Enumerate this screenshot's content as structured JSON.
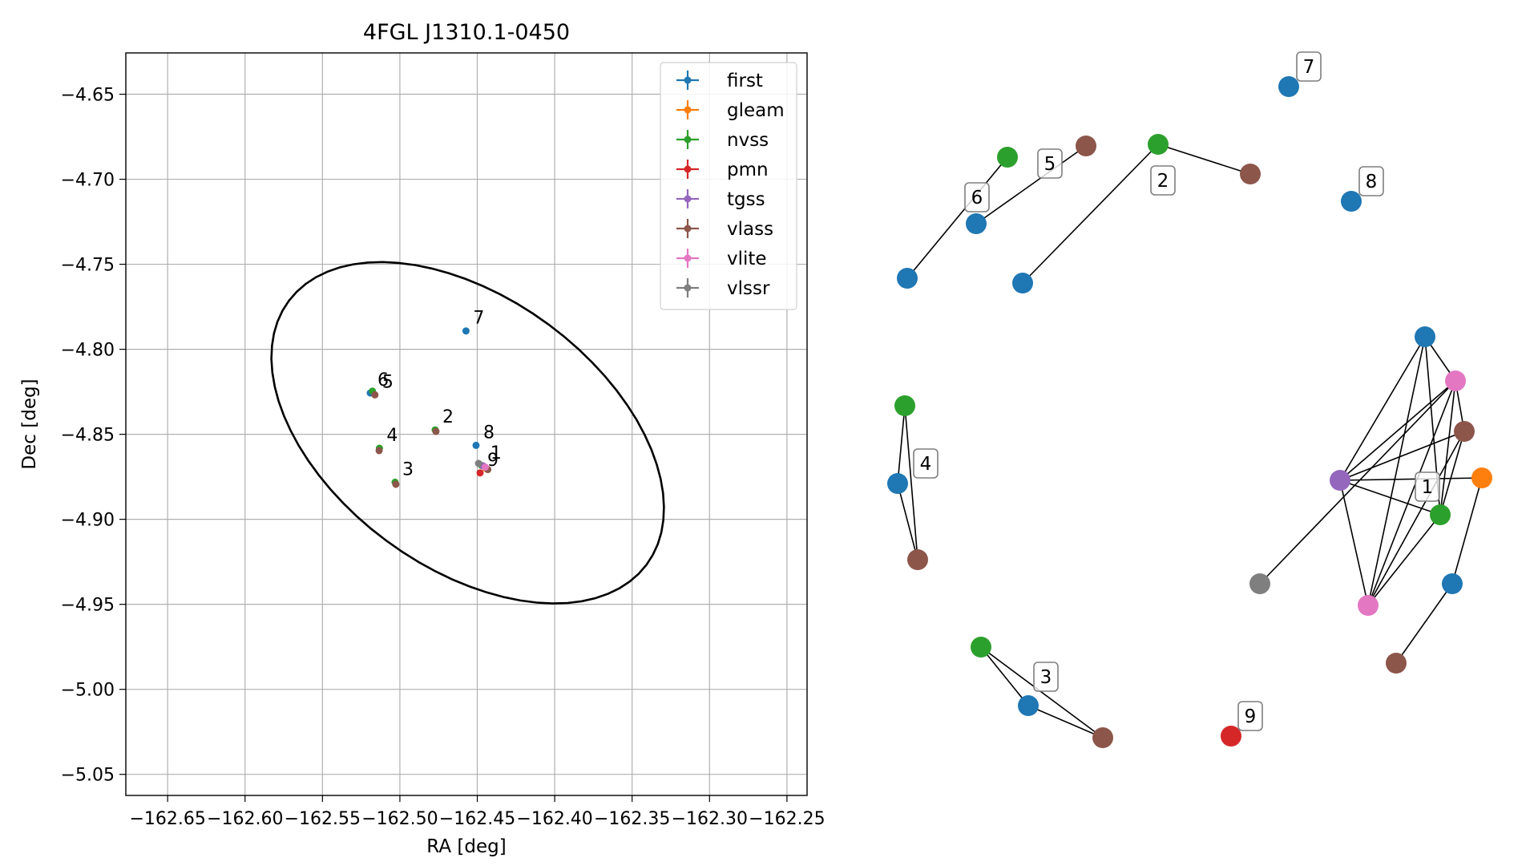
{
  "chart_data": [
    {
      "type": "scatter",
      "title": "4FGL J1310.1-0450",
      "xlabel": "RA [deg]",
      "ylabel": "Dec [deg]",
      "xlim": [
        -162.677,
        -162.237
      ],
      "ylim": [
        -5.0624,
        -4.6257
      ],
      "xticks": [
        -162.65,
        -162.6,
        -162.55,
        -162.5,
        -162.45,
        -162.4,
        -162.35,
        -162.3,
        -162.25
      ],
      "xtick_labels": [
        "−162.65",
        "−162.60",
        "−162.55",
        "−162.50",
        "−162.45",
        "−162.40",
        "−162.35",
        "−162.30",
        "−162.25"
      ],
      "yticks": [
        -4.65,
        -4.7,
        -4.75,
        -4.8,
        -4.85,
        -4.9,
        -4.95,
        -5.0,
        -5.05
      ],
      "ytick_labels": [
        "−4.65",
        "−4.70",
        "−4.75",
        "−4.80",
        "−4.85",
        "−4.90",
        "−4.95",
        "−5.00",
        "−5.05"
      ],
      "grid": true,
      "legend_position": "top-right",
      "ellipse": {
        "center": [
          -162.4562,
          -4.8491
        ],
        "semi_axes": [
          0.1395,
          0.0818
        ],
        "angle_deg": -31
      },
      "series": [
        {
          "name": "first",
          "color": "#1f77b4",
          "points": [
            [
              -162.4573,
              -4.7892
            ],
            [
              -162.4508,
              -4.8565
            ],
            [
              -162.5191,
              -4.8257
            ]
          ]
        },
        {
          "name": "gleam",
          "color": "#ff7f0e",
          "points": [
            [
              -162.4445,
              -4.8701
            ]
          ]
        },
        {
          "name": "nvss",
          "color": "#2ca02c",
          "points": [
            [
              -162.5177,
              -4.8246
            ],
            [
              -162.4772,
              -4.8474
            ],
            [
              -162.5132,
              -4.8582
            ],
            [
              -162.5031,
              -4.8782
            ],
            [
              -162.4472,
              -4.8683
            ]
          ]
        },
        {
          "name": "pmn",
          "color": "#d62728",
          "points": [
            [
              -162.4482,
              -4.8727
            ]
          ]
        },
        {
          "name": "tgss",
          "color": "#9467bd",
          "points": [
            [
              -162.4462,
              -4.8686
            ]
          ]
        },
        {
          "name": "vlass",
          "color": "#8c564b",
          "points": [
            [
              -162.5161,
              -4.8268
            ],
            [
              -162.4767,
              -4.8483
            ],
            [
              -162.5134,
              -4.8596
            ],
            [
              -162.5026,
              -4.8794
            ],
            [
              -162.4432,
              -4.8707
            ]
          ]
        },
        {
          "name": "vlite",
          "color": "#e377c2",
          "points": [
            [
              -162.4448,
              -4.8693
            ]
          ]
        },
        {
          "name": "vlssr",
          "color": "#7f7f7f",
          "points": [
            [
              -162.4492,
              -4.8671
            ]
          ]
        }
      ],
      "annotations": [
        {
          "text": "7",
          "x": -162.4573,
          "y": -4.7892
        },
        {
          "text": "6",
          "x": -162.5191,
          "y": -4.8257
        },
        {
          "text": "5",
          "x": -162.5161,
          "y": -4.8268
        },
        {
          "text": "2",
          "x": -162.4772,
          "y": -4.8474
        },
        {
          "text": "8",
          "x": -162.4508,
          "y": -4.8565
        },
        {
          "text": "4",
          "x": -162.5132,
          "y": -4.8582
        },
        {
          "text": "1",
          "x": -162.4462,
          "y": -4.8686
        },
        {
          "text": "9",
          "x": -162.4482,
          "y": -4.8727
        },
        {
          "text": "3",
          "x": -162.5031,
          "y": -4.8782
        }
      ]
    },
    {
      "type": "network",
      "nodes": [
        {
          "id": "n7",
          "color": "#1f77b4",
          "label": "7"
        },
        {
          "id": "n8",
          "color": "#1f77b4",
          "label": "8"
        },
        {
          "id": "n6a",
          "color": "#1f77b4",
          "label": "6"
        },
        {
          "id": "n6b",
          "color": "#1f77b4"
        },
        {
          "id": "n5a",
          "color": "#2ca02c"
        },
        {
          "id": "n5b",
          "color": "#8c564b",
          "label": "5"
        },
        {
          "id": "n2a",
          "color": "#2ca02c"
        },
        {
          "id": "n2b",
          "color": "#8c564b",
          "label": "2"
        },
        {
          "id": "n2c",
          "color": "#1f77b4"
        },
        {
          "id": "n4a",
          "color": "#2ca02c",
          "label": "4"
        },
        {
          "id": "n4b",
          "color": "#1f77b4"
        },
        {
          "id": "n4c",
          "color": "#8c564b"
        },
        {
          "id": "n3a",
          "color": "#2ca02c"
        },
        {
          "id": "n3b",
          "color": "#1f77b4",
          "label": "3"
        },
        {
          "id": "n3c",
          "color": "#8c564b"
        },
        {
          "id": "n9",
          "color": "#d62728",
          "label": "9"
        },
        {
          "id": "c_first",
          "color": "#1f77b4"
        },
        {
          "id": "c_vlite1",
          "color": "#e377c2"
        },
        {
          "id": "c_vlass",
          "color": "#8c564b"
        },
        {
          "id": "c_gleam",
          "color": "#ff7f0e"
        },
        {
          "id": "c_tgss",
          "color": "#9467bd",
          "label": "1"
        },
        {
          "id": "c_nvss",
          "color": "#2ca02c"
        },
        {
          "id": "c_vlssr",
          "color": "#7f7f7f"
        },
        {
          "id": "c_vlite2",
          "color": "#e377c2"
        },
        {
          "id": "c_first2",
          "color": "#1f77b4"
        },
        {
          "id": "c_vlass2",
          "color": "#8c564b"
        }
      ],
      "edges": [
        [
          "n6a",
          "n5b"
        ],
        [
          "n6b",
          "n5a"
        ],
        [
          "n2a",
          "n2b"
        ],
        [
          "n2a",
          "n2c"
        ],
        [
          "n4a",
          "n4b"
        ],
        [
          "n4a",
          "n4c"
        ],
        [
          "n4b",
          "n4c"
        ],
        [
          "n3a",
          "n3b"
        ],
        [
          "n3a",
          "n3c"
        ],
        [
          "n3b",
          "n3c"
        ],
        [
          "c_first",
          "c_tgss"
        ],
        [
          "c_first",
          "c_nvss"
        ],
        [
          "c_first",
          "c_vlite2"
        ],
        [
          "c_first",
          "c_vlite1"
        ],
        [
          "c_vlite1",
          "c_tgss"
        ],
        [
          "c_vlite1",
          "c_vlass"
        ],
        [
          "c_vlite1",
          "c_nvss"
        ],
        [
          "c_vlite1",
          "c_vlite2"
        ],
        [
          "c_vlite1",
          "c_vlssr"
        ],
        [
          "c_vlass",
          "c_tgss"
        ],
        [
          "c_vlass",
          "c_nvss"
        ],
        [
          "c_vlass",
          "c_vlite2"
        ],
        [
          "c_tgss",
          "c_gleam"
        ],
        [
          "c_tgss",
          "c_nvss"
        ],
        [
          "c_tgss",
          "c_vlite2"
        ],
        [
          "c_gleam",
          "c_first2"
        ],
        [
          "c_nvss",
          "c_vlite2"
        ],
        [
          "c_first2",
          "c_vlass2"
        ]
      ]
    }
  ]
}
